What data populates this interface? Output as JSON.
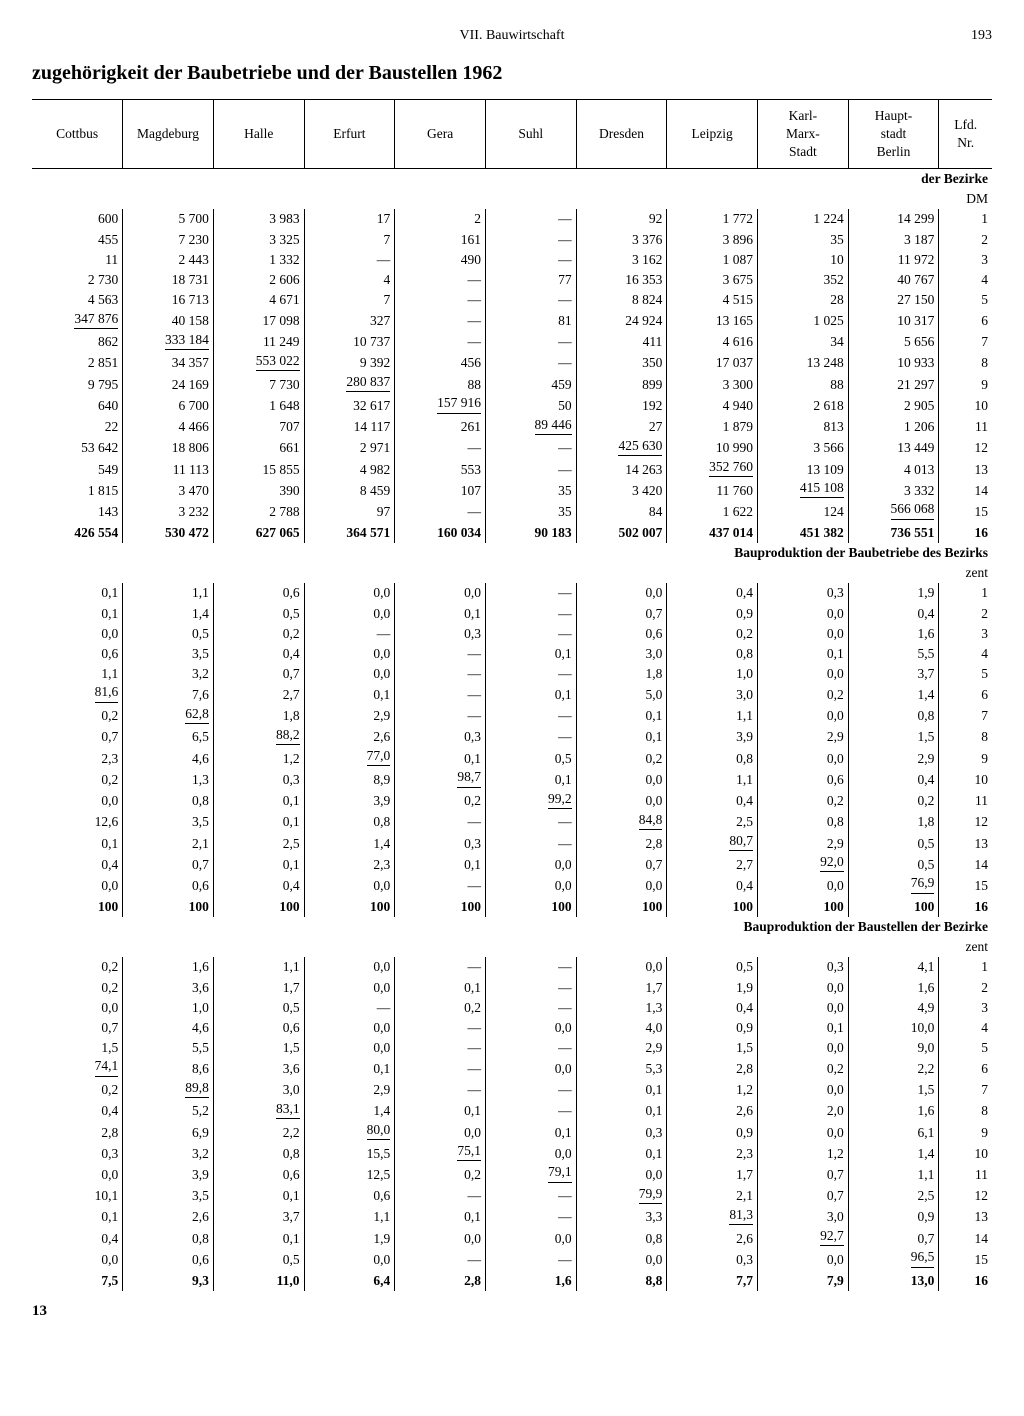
{
  "running_head": {
    "chapter": "VII. Bauwirtschaft",
    "page": "193"
  },
  "title": "zugehörigkeit der Baubetriebe und der Baustellen 1962",
  "columns": [
    "Cottbus",
    "Magdeburg",
    "Halle",
    "Erfurt",
    "Gera",
    "Suhl",
    "Dresden",
    "Leipzig",
    "Karl-\nMarx-\nStadt",
    "Haupt-\nstadt\nBerlin",
    "Lfd.\nNr."
  ],
  "sections": [
    {
      "label": "der Bezirke",
      "sublabel": "DM",
      "diag_cells": [
        [
          5,
          0
        ],
        [
          6,
          1
        ],
        [
          7,
          2
        ],
        [
          8,
          3
        ],
        [
          9,
          4
        ],
        [
          10,
          5
        ],
        [
          11,
          6
        ],
        [
          12,
          7
        ],
        [
          13,
          8
        ],
        [
          14,
          9
        ]
      ],
      "rows": [
        [
          "600",
          "5 700",
          "3 983",
          "17",
          "2",
          "—",
          "92",
          "1 772",
          "1 224",
          "14 299",
          "1"
        ],
        [
          "455",
          "7 230",
          "3 325",
          "7",
          "161",
          "—",
          "3 376",
          "3 896",
          "35",
          "3 187",
          "2"
        ],
        [
          "11",
          "2 443",
          "1 332",
          "—",
          "490",
          "—",
          "3 162",
          "1 087",
          "10",
          "11 972",
          "3"
        ],
        [
          "2 730",
          "18 731",
          "2 606",
          "4",
          "—",
          "77",
          "16 353",
          "3 675",
          "352",
          "40 767",
          "4"
        ],
        [
          "4 563",
          "16 713",
          "4 671",
          "7",
          "—",
          "—",
          "8 824",
          "4 515",
          "28",
          "27 150",
          "5"
        ],
        [
          "347 876",
          "40 158",
          "17 098",
          "327",
          "—",
          "81",
          "24 924",
          "13 165",
          "1 025",
          "10 317",
          "6"
        ],
        [
          "862",
          "333 184",
          "11 249",
          "10 737",
          "—",
          "—",
          "411",
          "4 616",
          "34",
          "5 656",
          "7"
        ],
        [
          "2 851",
          "34 357",
          "553 022",
          "9 392",
          "456",
          "—",
          "350",
          "17 037",
          "13 248",
          "10 933",
          "8"
        ],
        [
          "9 795",
          "24 169",
          "7 730",
          "280 837",
          "88",
          "459",
          "899",
          "3 300",
          "88",
          "21 297",
          "9"
        ],
        [
          "640",
          "6 700",
          "1 648",
          "32 617",
          "157 916",
          "50",
          "192",
          "4 940",
          "2 618",
          "2 905",
          "10"
        ],
        [
          "22",
          "4 466",
          "707",
          "14 117",
          "261",
          "89 446",
          "27",
          "1 879",
          "813",
          "1 206",
          "11"
        ],
        [
          "53 642",
          "18 806",
          "661",
          "2 971",
          "—",
          "—",
          "425 630",
          "10 990",
          "3 566",
          "13 449",
          "12"
        ],
        [
          "549",
          "11 113",
          "15 855",
          "4 982",
          "553",
          "—",
          "14 263",
          "352 760",
          "13 109",
          "4 013",
          "13"
        ],
        [
          "1 815",
          "3 470",
          "390",
          "8 459",
          "107",
          "35",
          "3 420",
          "11 760",
          "415 108",
          "3 332",
          "14"
        ],
        [
          "143",
          "3 232",
          "2 788",
          "97",
          "—",
          "35",
          "84",
          "1 622",
          "124",
          "566 068",
          "15"
        ]
      ],
      "sum": [
        "426 554",
        "530 472",
        "627 065",
        "364 571",
        "160 034",
        "90 183",
        "502 007",
        "437 014",
        "451 382",
        "736 551",
        "16"
      ]
    },
    {
      "label": "Bauproduktion der Baubetriebe des Bezirks",
      "sublabel": "zent",
      "diag_cells": [
        [
          5,
          0
        ],
        [
          6,
          1
        ],
        [
          7,
          2
        ],
        [
          8,
          3
        ],
        [
          9,
          4
        ],
        [
          10,
          5
        ],
        [
          11,
          6
        ],
        [
          12,
          7
        ],
        [
          13,
          8
        ],
        [
          14,
          9
        ]
      ],
      "rows": [
        [
          "0,1",
          "1,1",
          "0,6",
          "0,0",
          "0,0",
          "—",
          "0,0",
          "0,4",
          "0,3",
          "1,9",
          "1"
        ],
        [
          "0,1",
          "1,4",
          "0,5",
          "0,0",
          "0,1",
          "—",
          "0,7",
          "0,9",
          "0,0",
          "0,4",
          "2"
        ],
        [
          "0,0",
          "0,5",
          "0,2",
          "—",
          "0,3",
          "—",
          "0,6",
          "0,2",
          "0,0",
          "1,6",
          "3"
        ],
        [
          "0,6",
          "3,5",
          "0,4",
          "0,0",
          "—",
          "0,1",
          "3,0",
          "0,8",
          "0,1",
          "5,5",
          "4"
        ],
        [
          "1,1",
          "3,2",
          "0,7",
          "0,0",
          "—",
          "—",
          "1,8",
          "1,0",
          "0,0",
          "3,7",
          "5"
        ],
        [
          "81,6",
          "7,6",
          "2,7",
          "0,1",
          "—",
          "0,1",
          "5,0",
          "3,0",
          "0,2",
          "1,4",
          "6"
        ],
        [
          "0,2",
          "62,8",
          "1,8",
          "2,9",
          "—",
          "—",
          "0,1",
          "1,1",
          "0,0",
          "0,8",
          "7"
        ],
        [
          "0,7",
          "6,5",
          "88,2",
          "2,6",
          "0,3",
          "—",
          "0,1",
          "3,9",
          "2,9",
          "1,5",
          "8"
        ],
        [
          "2,3",
          "4,6",
          "1,2",
          "77,0",
          "0,1",
          "0,5",
          "0,2",
          "0,8",
          "0,0",
          "2,9",
          "9"
        ],
        [
          "0,2",
          "1,3",
          "0,3",
          "8,9",
          "98,7",
          "0,1",
          "0,0",
          "1,1",
          "0,6",
          "0,4",
          "10"
        ],
        [
          "0,0",
          "0,8",
          "0,1",
          "3,9",
          "0,2",
          "99,2",
          "0,0",
          "0,4",
          "0,2",
          "0,2",
          "11"
        ],
        [
          "12,6",
          "3,5",
          "0,1",
          "0,8",
          "—",
          "—",
          "84,8",
          "2,5",
          "0,8",
          "1,8",
          "12"
        ],
        [
          "0,1",
          "2,1",
          "2,5",
          "1,4",
          "0,3",
          "—",
          "2,8",
          "80,7",
          "2,9",
          "0,5",
          "13"
        ],
        [
          "0,4",
          "0,7",
          "0,1",
          "2,3",
          "0,1",
          "0,0",
          "0,7",
          "2,7",
          "92,0",
          "0,5",
          "14"
        ],
        [
          "0,0",
          "0,6",
          "0,4",
          "0,0",
          "—",
          "0,0",
          "0,0",
          "0,4",
          "0,0",
          "76,9",
          "15"
        ]
      ],
      "sum": [
        "100",
        "100",
        "100",
        "100",
        "100",
        "100",
        "100",
        "100",
        "100",
        "100",
        "16"
      ]
    },
    {
      "label": "Bauproduktion der Baustellen der Bezirke",
      "sublabel": "zent",
      "diag_cells": [
        [
          5,
          0
        ],
        [
          6,
          1
        ],
        [
          7,
          2
        ],
        [
          8,
          3
        ],
        [
          9,
          4
        ],
        [
          10,
          5
        ],
        [
          11,
          6
        ],
        [
          12,
          7
        ],
        [
          13,
          8
        ],
        [
          14,
          9
        ]
      ],
      "rows": [
        [
          "0,2",
          "1,6",
          "1,1",
          "0,0",
          "—",
          "—",
          "0,0",
          "0,5",
          "0,3",
          "4,1",
          "1"
        ],
        [
          "0,2",
          "3,6",
          "1,7",
          "0,0",
          "0,1",
          "—",
          "1,7",
          "1,9",
          "0,0",
          "1,6",
          "2"
        ],
        [
          "0,0",
          "1,0",
          "0,5",
          "—",
          "0,2",
          "—",
          "1,3",
          "0,4",
          "0,0",
          "4,9",
          "3"
        ],
        [
          "0,7",
          "4,6",
          "0,6",
          "0,0",
          "—",
          "0,0",
          "4,0",
          "0,9",
          "0,1",
          "10,0",
          "4"
        ],
        [
          "1,5",
          "5,5",
          "1,5",
          "0,0",
          "—",
          "—",
          "2,9",
          "1,5",
          "0,0",
          "9,0",
          "5"
        ],
        [
          "74,1",
          "8,6",
          "3,6",
          "0,1",
          "—",
          "0,0",
          "5,3",
          "2,8",
          "0,2",
          "2,2",
          "6"
        ],
        [
          "0,2",
          "89,8",
          "3,0",
          "2,9",
          "—",
          "—",
          "0,1",
          "1,2",
          "0,0",
          "1,5",
          "7"
        ],
        [
          "0,4",
          "5,2",
          "83,1",
          "1,4",
          "0,1",
          "—",
          "0,1",
          "2,6",
          "2,0",
          "1,6",
          "8"
        ],
        [
          "2,8",
          "6,9",
          "2,2",
          "80,0",
          "0,0",
          "0,1",
          "0,3",
          "0,9",
          "0,0",
          "6,1",
          "9"
        ],
        [
          "0,3",
          "3,2",
          "0,8",
          "15,5",
          "75,1",
          "0,0",
          "0,1",
          "2,3",
          "1,2",
          "1,4",
          "10"
        ],
        [
          "0,0",
          "3,9",
          "0,6",
          "12,5",
          "0,2",
          "79,1",
          "0,0",
          "1,7",
          "0,7",
          "1,1",
          "11"
        ],
        [
          "10,1",
          "3,5",
          "0,1",
          "0,6",
          "—",
          "—",
          "79,9",
          "2,1",
          "0,7",
          "2,5",
          "12"
        ],
        [
          "0,1",
          "2,6",
          "3,7",
          "1,1",
          "0,1",
          "—",
          "3,3",
          "81,3",
          "3,0",
          "0,9",
          "13"
        ],
        [
          "0,4",
          "0,8",
          "0,1",
          "1,9",
          "0,0",
          "0,0",
          "0,8",
          "2,6",
          "92,7",
          "0,7",
          "14"
        ],
        [
          "0,0",
          "0,6",
          "0,5",
          "0,0",
          "—",
          "—",
          "0,0",
          "0,3",
          "0,0",
          "96,5",
          "15"
        ]
      ],
      "sum": [
        "7,5",
        "9,3",
        "11,0",
        "6,4",
        "2,8",
        "1,6",
        "8,8",
        "7,7",
        "7,9",
        "13,0",
        "16"
      ]
    }
  ],
  "footer_number": "13"
}
